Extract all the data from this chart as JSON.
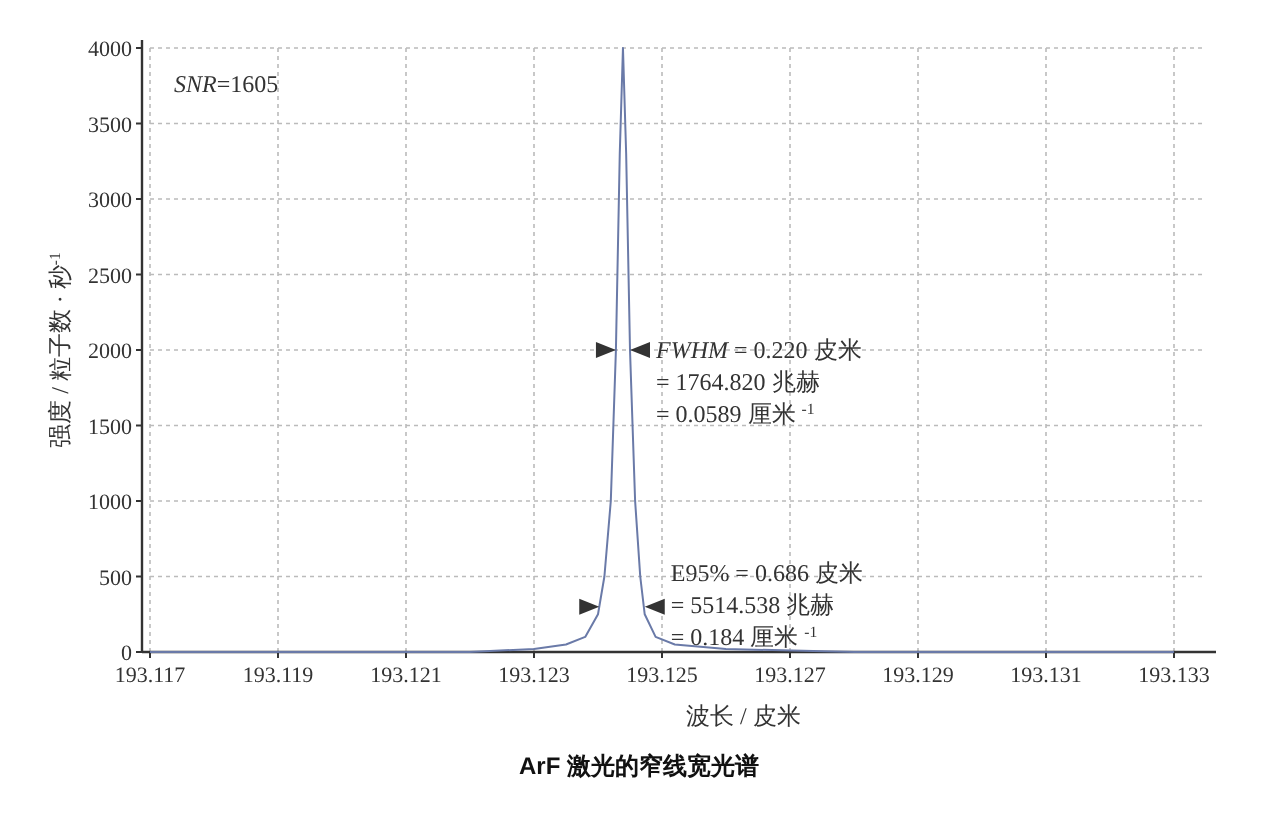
{
  "chart_data": {
    "type": "line",
    "title": "ArF 激光的窄线宽光谱",
    "xlabel": "波长 / 皮米",
    "ylabel": "强度 / 粒子数 · 秒$^{-1}$",
    "x": [
      193.117,
      193.12,
      193.122,
      193.123,
      193.1235,
      193.1238,
      193.124,
      193.1241,
      193.1242,
      193.12428,
      193.12434,
      193.12439,
      193.12444,
      193.1245,
      193.12458,
      193.12466,
      193.12473,
      193.1249,
      193.1252,
      193.126,
      193.128,
      193.133
    ],
    "series": [
      {
        "color": "#6a7aa8",
        "values": [
          0,
          0,
          0,
          20,
          50,
          100,
          250,
          500,
          1000,
          2000,
          3300,
          4000,
          3300,
          2000,
          1000,
          500,
          250,
          100,
          50,
          20,
          0,
          0
        ]
      }
    ],
    "xlim": [
      193.117,
      193.1335
    ],
    "ylim": [
      0,
      4000
    ],
    "xticks": [
      193.117,
      193.119,
      193.121,
      193.123,
      193.125,
      193.127,
      193.129,
      193.131,
      193.133
    ],
    "yticks": [
      0,
      500,
      1000,
      1500,
      2000,
      2500,
      3000,
      3500,
      4000
    ],
    "grid": true,
    "marker": "none",
    "line_style": "solid",
    "annotations": [
      "*SNR*=1605",
      {
        "text": "*FWHM* = 0.220 皮米\n= 1764.820 兆赫\n= 0.0589 厘米 $^{-1}$",
        "x": 193.1245,
        "y": 2000
      },
      {
        "text": "E95% = 0.686 皮米\n= 5514.538 兆赫\n= 0.184 厘米 $^{-1}$",
        "x": 193.12473,
        "y": 300
      }
    ]
  }
}
